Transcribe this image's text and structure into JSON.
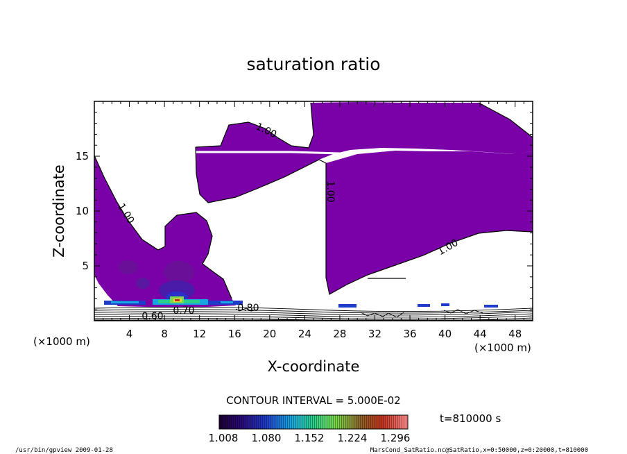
{
  "chart_data": {
    "type": "contour",
    "title": "saturation ratio",
    "xlabel": "X-coordinate",
    "ylabel": "Z-coordinate",
    "x_unit": "(×1000 m)",
    "y_unit": "(×1000 m)",
    "xlim": [
      0,
      50
    ],
    "ylim": [
      0,
      20
    ],
    "x_ticks": [
      4,
      8,
      12,
      16,
      20,
      24,
      28,
      32,
      36,
      40,
      44,
      48
    ],
    "y_ticks": [
      5,
      10,
      15
    ],
    "contour_interval_text": "CONTOUR INTERVAL = 5.000E-02",
    "contour_labels": [
      "1.00",
      "1.00",
      "1.00",
      "1.00",
      "0.60",
      "0.70",
      "0.80"
    ],
    "colorbar_ticks": [
      "1.008",
      "1.080",
      "1.152",
      "1.224",
      "1.296"
    ],
    "fill_color": "#7a00a8",
    "time_label": "t=810000 s",
    "footer_left": "/usr/bin/gpview  2009-01-28",
    "footer_right": "MarsCond_SatRatio.nc@SatRatio,x=0:50000,z=0:20000,t=810000"
  }
}
